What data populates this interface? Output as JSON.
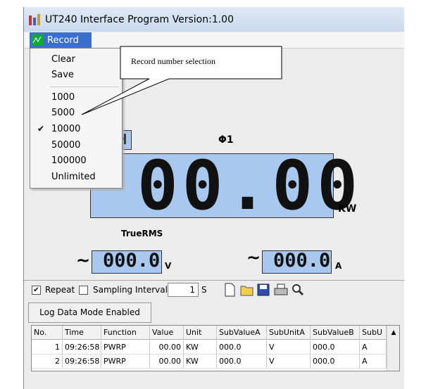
{
  "window": {
    "title": "UT240 Interface Program Version:1.00"
  },
  "menu": {
    "label": "Record",
    "items": [
      "Clear",
      "Save",
      "1000",
      "5000",
      "10000",
      "50000",
      "100000",
      "Unlimited"
    ]
  },
  "callout": "Record number selection",
  "display": {
    "mode_glyph": "H",
    "phase": "Φ1",
    "main_value": "00.00",
    "main_unit": "KW",
    "mode": "TrueRMS",
    "ac_symbol": "~",
    "voltage": "000.0",
    "voltage_unit": "V",
    "current": "000.0",
    "current_unit": "A"
  },
  "toolbar": {
    "repeat": "Repeat",
    "sampling_interval": "Sampling Interval",
    "interval_value": "1",
    "interval_unit": "S",
    "log_button": "Log Data Mode Enabled"
  },
  "table": {
    "columns": [
      "No.",
      "Time",
      "Function",
      "Value",
      "Unit",
      "SubValueA",
      "SubUnitA",
      "SubValueB",
      "SubU"
    ],
    "rows": [
      [
        "1",
        "09:26:58",
        "PWRP",
        "00.00",
        "KW",
        "000.0",
        "V",
        "000.0",
        "A"
      ],
      [
        "2",
        "09:26:58",
        "PWRP",
        "00.00",
        "KW",
        "000.0",
        "V",
        "000.0",
        "A"
      ]
    ]
  }
}
